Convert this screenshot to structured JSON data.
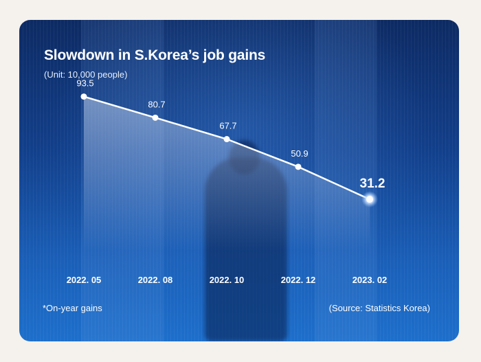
{
  "chart_data": {
    "type": "line",
    "title": "Slowdown in S.Korea’s job gains",
    "subtitle": "(Unit: 10,000 people)",
    "categories": [
      "2022. 05",
      "2022. 08",
      "2022. 10",
      "2022. 12",
      "2023. 02"
    ],
    "values": [
      93.5,
      80.7,
      67.7,
      50.9,
      31.2
    ],
    "highlight_index": 4,
    "ylim": [
      0,
      140
    ],
    "grid": false,
    "legend": "none",
    "footnote": "*On-year gains",
    "source": "(Source: Statistics Korea)",
    "colors": {
      "line": "#ffffff",
      "marker": "#ffffff",
      "highlight_glow": "#8fc0ff",
      "area_fill": "#dce9ff",
      "background_top": "#0d2a63",
      "background_bottom": "#1d6fcb",
      "page": "#f5f1ec"
    }
  }
}
